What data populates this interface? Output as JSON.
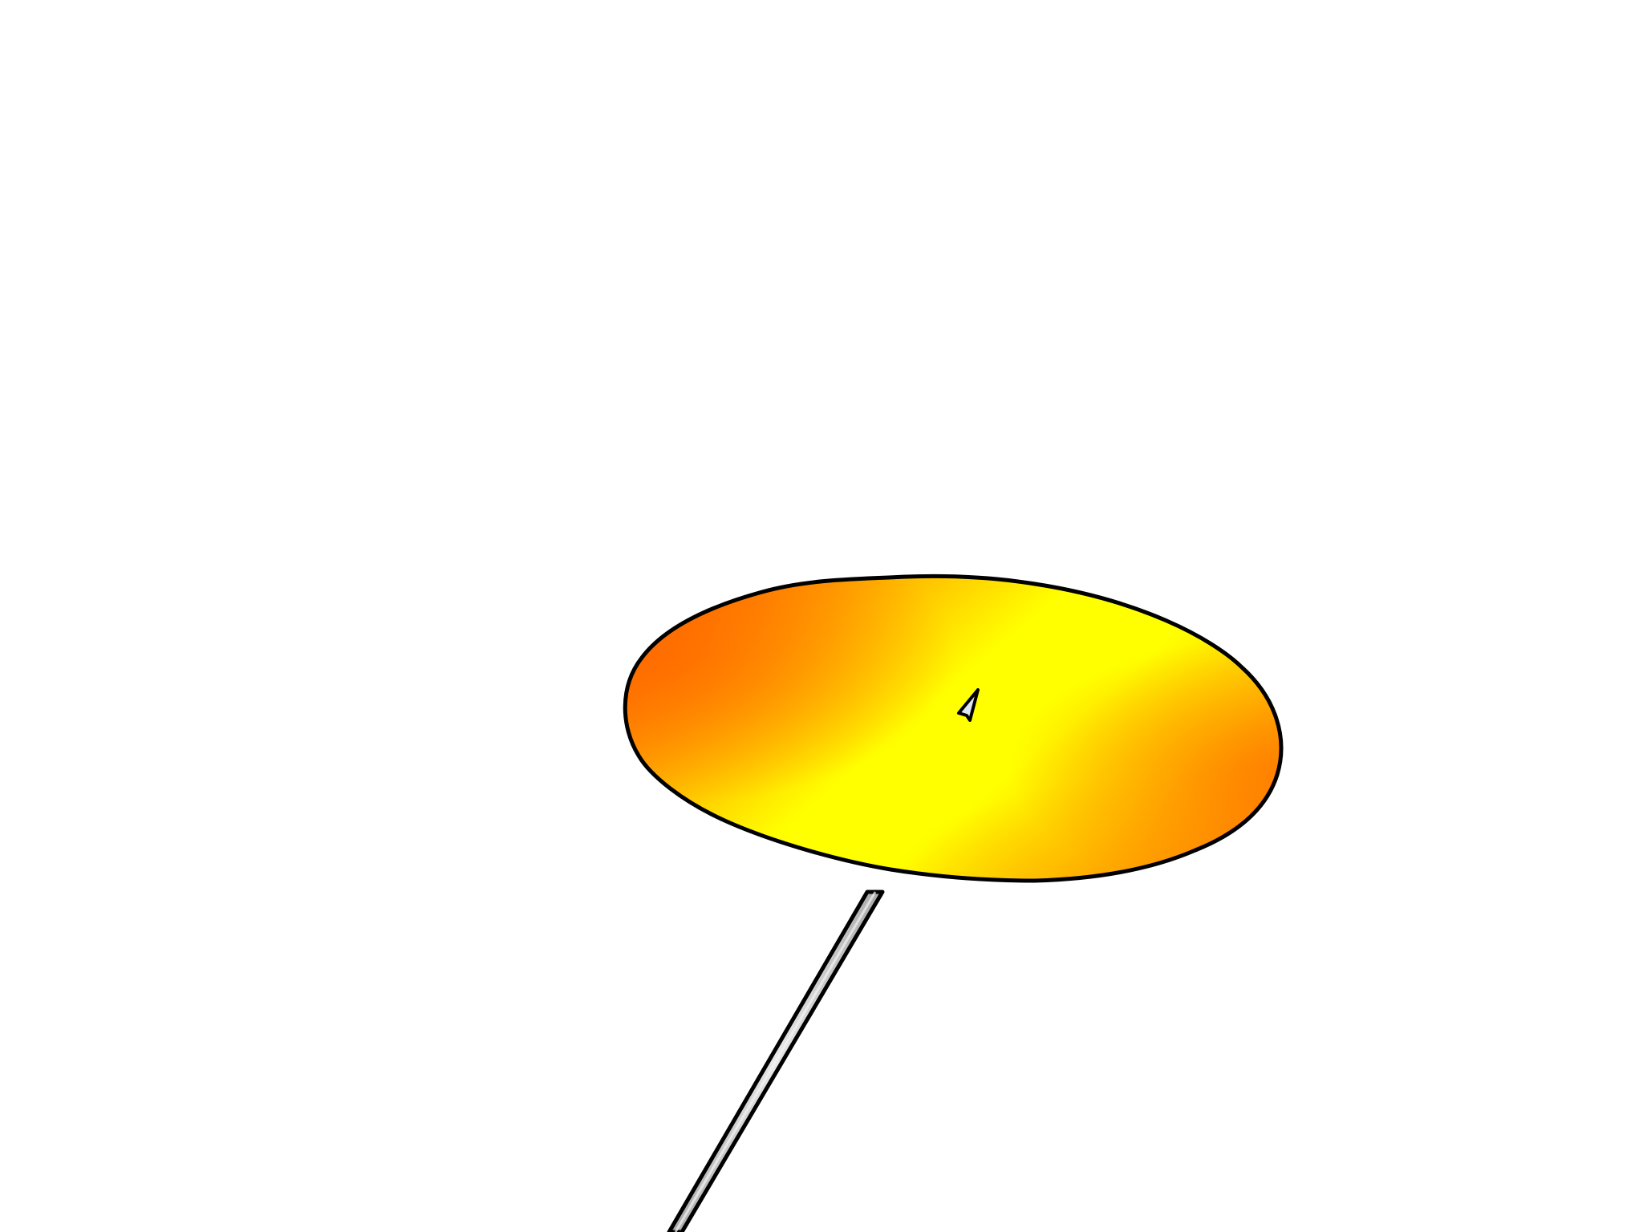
{
  "scene": {
    "background_color": "#ffffff",
    "outline_color": "#000000",
    "disc": {
      "name": "yellow-orange-disc",
      "colors": [
        "#ffff00",
        "#ffd000",
        "#ff7a00"
      ]
    },
    "pole": {
      "name": "grey-stick",
      "colors": [
        "#e8e8e8",
        "#a8a8a8"
      ]
    },
    "pointer": {
      "name": "cursor-arrow-icon",
      "color": "#dfe6f5"
    }
  }
}
